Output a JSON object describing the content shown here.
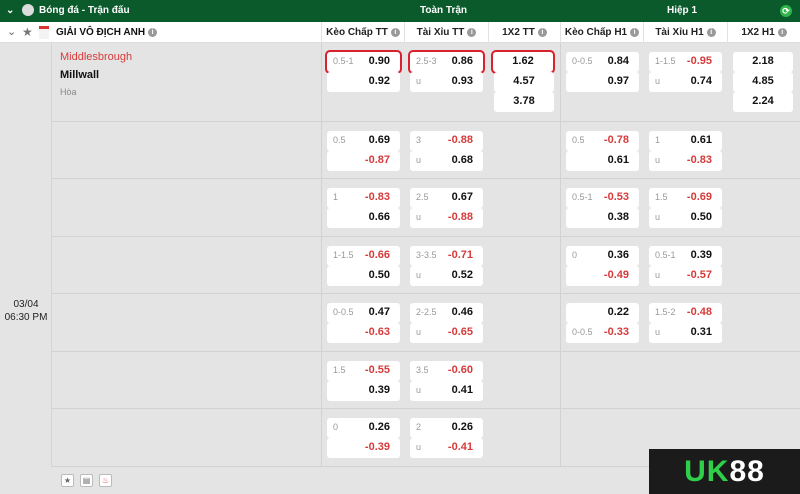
{
  "topbar": {
    "sport": "Bóng đá - Trận đấu",
    "full": "Toàn Trận",
    "half": "Hiệp 1"
  },
  "league": {
    "name": "GIẢI VÔ ĐỊCH ANH"
  },
  "columns": [
    "Kèo Chấp TT",
    "Tài Xỉu TT",
    "1X2 TT",
    "Kèo Chấp H1",
    "Tài Xỉu H1",
    "1X2 H1"
  ],
  "match": {
    "home": "Middlesbrough",
    "away": "Millwall",
    "draw": "Hòa",
    "date": "03/04",
    "time": "06:30 PM"
  },
  "rows": [
    {
      "kc_tt": [
        [
          "0.5-1",
          "0.90"
        ],
        [
          "",
          "0.92"
        ]
      ],
      "tx_tt": [
        [
          "2.5-3",
          "0.86"
        ],
        [
          "u",
          "0.93"
        ]
      ],
      "x12_tt": [
        "1.62",
        "4.57",
        "3.78"
      ],
      "kc_h1": [
        [
          "0-0.5",
          "0.84"
        ],
        [
          "",
          "0.97"
        ]
      ],
      "tx_h1": [
        [
          "1-1.5",
          "-0.95"
        ],
        [
          "u",
          "0.74"
        ]
      ],
      "x12_h1": [
        "2.18",
        "4.85",
        "2.24"
      ]
    },
    {
      "kc_tt": [
        [
          "0.5",
          "0.69"
        ],
        [
          "",
          "-0.87"
        ]
      ],
      "tx_tt": [
        [
          "3",
          "-0.88"
        ],
        [
          "u",
          "0.68"
        ]
      ],
      "kc_h1": [
        [
          "0.5",
          "-0.78"
        ],
        [
          "",
          "0.61"
        ]
      ],
      "tx_h1": [
        [
          "1",
          "0.61"
        ],
        [
          "u",
          "-0.83"
        ]
      ]
    },
    {
      "kc_tt": [
        [
          "1",
          "-0.83"
        ],
        [
          "",
          "0.66"
        ]
      ],
      "tx_tt": [
        [
          "2.5",
          "0.67"
        ],
        [
          "u",
          "-0.88"
        ]
      ],
      "kc_h1": [
        [
          "0.5-1",
          "-0.53"
        ],
        [
          "",
          "0.38"
        ]
      ],
      "tx_h1": [
        [
          "1.5",
          "-0.69"
        ],
        [
          "u",
          "0.50"
        ]
      ]
    },
    {
      "kc_tt": [
        [
          "1-1.5",
          "-0.66"
        ],
        [
          "",
          "0.50"
        ]
      ],
      "tx_tt": [
        [
          "3-3.5",
          "-0.71"
        ],
        [
          "u",
          "0.52"
        ]
      ],
      "kc_h1": [
        [
          "0",
          "0.36"
        ],
        [
          "",
          "-0.49"
        ]
      ],
      "tx_h1": [
        [
          "0.5-1",
          "0.39"
        ],
        [
          "u",
          "-0.57"
        ]
      ]
    },
    {
      "kc_tt": [
        [
          "0-0.5",
          "0.47"
        ],
        [
          "",
          "-0.63"
        ]
      ],
      "tx_tt": [
        [
          "2-2.5",
          "0.46"
        ],
        [
          "u",
          "-0.65"
        ]
      ],
      "kc_h1": [
        [
          "",
          "0.22"
        ],
        [
          "0-0.5",
          "-0.33"
        ]
      ],
      "tx_h1": [
        [
          "1.5-2",
          "-0.48"
        ],
        [
          "u",
          "0.31"
        ]
      ]
    },
    {
      "kc_tt": [
        [
          "1.5",
          "-0.55"
        ],
        [
          "",
          "0.39"
        ]
      ],
      "tx_tt": [
        [
          "3.5",
          "-0.60"
        ],
        [
          "u",
          "0.41"
        ]
      ]
    },
    {
      "kc_tt": [
        [
          "0",
          "0.26"
        ],
        [
          "",
          "-0.39"
        ]
      ],
      "tx_tt": [
        [
          "2",
          "0.26"
        ],
        [
          "u",
          "-0.41"
        ]
      ]
    }
  ],
  "selected": [
    "kc_tt top row 0",
    "tx_tt top row 0",
    "x12_tt 1.62"
  ],
  "colors": {
    "header": "#0b5a2b",
    "negative": "#d63b3b",
    "selected": "#d8222e",
    "home": "#d63b3b"
  },
  "logo": "UK88"
}
